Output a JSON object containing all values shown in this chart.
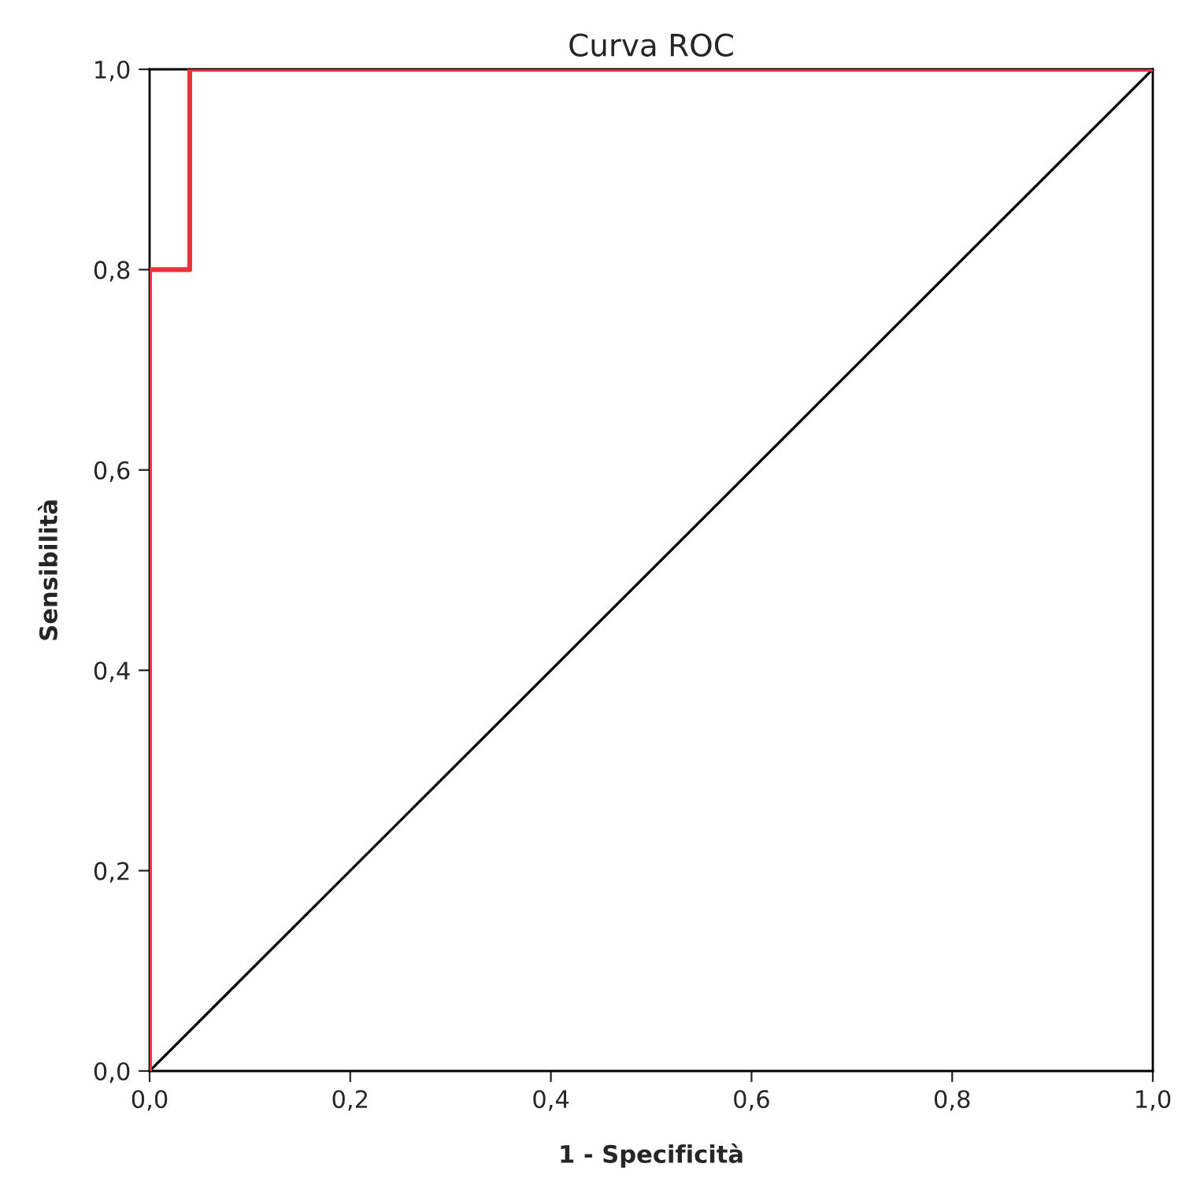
{
  "chart_data": {
    "type": "line",
    "title": "Curva ROC",
    "xlabel": "1 - Specificità",
    "ylabel": "Sensibilità",
    "series": [
      {
        "color": "#e8363c",
        "x": [
          0,
          0,
          0.04,
          0.04,
          1
        ],
        "values": [
          0,
          0.8,
          0.8,
          1,
          1
        ]
      },
      {
        "color": "#000000",
        "x": [
          0,
          1
        ],
        "values": [
          0,
          1
        ]
      }
    ],
    "xlim": [
      0,
      1
    ],
    "ylim": [
      0,
      1
    ],
    "xticks": [
      {
        "value": 0,
        "label": "0,0"
      },
      {
        "value": 0.2,
        "label": "0,2"
      },
      {
        "value": 0.4,
        "label": "0,4"
      },
      {
        "value": 0.6,
        "label": "0,6"
      },
      {
        "value": 0.8,
        "label": "0,8"
      },
      {
        "value": 1,
        "label": "1,0"
      }
    ],
    "yticks": [
      {
        "value": 0,
        "label": "0,0"
      },
      {
        "value": 0.2,
        "label": "0,2"
      },
      {
        "value": 0.4,
        "label": "0,4"
      },
      {
        "value": 0.6,
        "label": "0,6"
      },
      {
        "value": 0.8,
        "label": "0,8"
      },
      {
        "value": 1,
        "label": "1,0"
      }
    ],
    "grid": false
  }
}
